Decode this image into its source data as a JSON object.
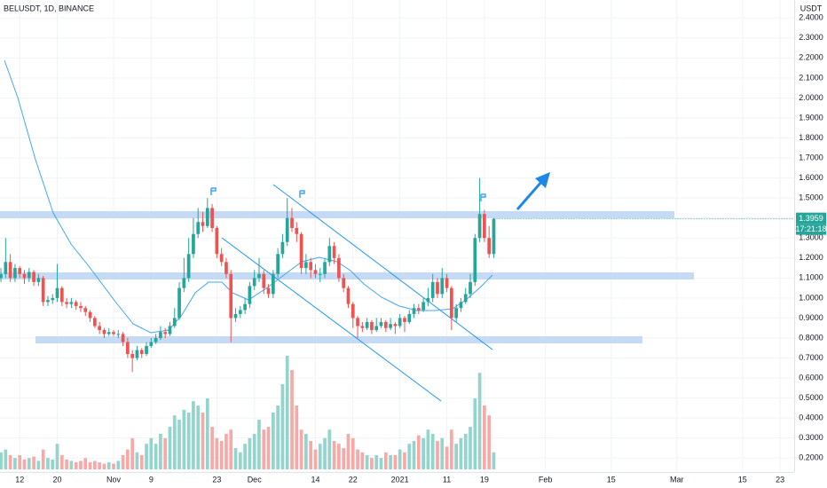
{
  "chart_data": {
    "type": "candlestick",
    "title": "BELUSDT, 1D, BINANCE",
    "currency_label": "USDT",
    "countdown": "17:21:18",
    "up_color": "#26a69a",
    "down_color": "#ef5350",
    "up_volume_color": "#93d4cc",
    "down_volume_color": "#f7a9a7",
    "ylim": [
      0.13,
      2.49
    ],
    "xlim": [
      -0.2,
      169
    ],
    "yticks": [
      {
        "value": 0.2,
        "label": "0.2000"
      },
      {
        "value": 0.3,
        "label": "0.3000"
      },
      {
        "value": 0.4,
        "label": "0.4000"
      },
      {
        "value": 0.5,
        "label": "0.5000"
      },
      {
        "value": 0.6,
        "label": "0.6000"
      },
      {
        "value": 0.7,
        "label": "0.7000"
      },
      {
        "value": 0.8,
        "label": "0.8000"
      },
      {
        "value": 0.9,
        "label": "0.9000"
      },
      {
        "value": 1.0,
        "label": "1.0000"
      },
      {
        "value": 1.1,
        "label": "1.1000"
      },
      {
        "value": 1.2,
        "label": "1.2000"
      },
      {
        "value": 1.3,
        "label": "1.3000"
      },
      {
        "value": 1.4,
        "label": "1.4000"
      },
      {
        "value": 1.5,
        "label": "1.5000"
      },
      {
        "value": 1.6,
        "label": "1.6000"
      },
      {
        "value": 1.7,
        "label": "1.7000"
      },
      {
        "value": 1.8,
        "label": "1.8000"
      },
      {
        "value": 1.9,
        "label": "1.9000"
      },
      {
        "value": 2.0,
        "label": "2.0000"
      },
      {
        "value": 2.1,
        "label": "2.1000"
      },
      {
        "value": 2.2,
        "label": "2.2000"
      },
      {
        "value": 2.3,
        "label": "2.3000"
      },
      {
        "value": 2.4,
        "label": "2.4000"
      }
    ],
    "xticks": [
      {
        "value": 4,
        "label": "12"
      },
      {
        "value": 12,
        "label": "20"
      },
      {
        "value": 24,
        "label": "Nov"
      },
      {
        "value": 32,
        "label": "9"
      },
      {
        "value": 46,
        "label": "23"
      },
      {
        "value": 54,
        "label": "Dec"
      },
      {
        "value": 67,
        "label": "14"
      },
      {
        "value": 75,
        "label": "22"
      },
      {
        "value": 85,
        "label": "2021"
      },
      {
        "value": 95,
        "label": "11"
      },
      {
        "value": 103,
        "label": "19"
      },
      {
        "value": 116,
        "label": "Feb"
      },
      {
        "value": 130,
        "label": "15"
      },
      {
        "value": 144,
        "label": "Mar"
      },
      {
        "value": 158,
        "label": "15"
      },
      {
        "value": 166,
        "label": "23"
      }
    ],
    "candles": [
      [
        1.1,
        1.15,
        1.08,
        1.12
      ],
      [
        1.12,
        1.3,
        1.1,
        1.18
      ],
      [
        1.18,
        1.22,
        1.08,
        1.1
      ],
      [
        1.1,
        1.17,
        1.08,
        1.15
      ],
      [
        1.15,
        1.16,
        1.1,
        1.12
      ],
      [
        1.12,
        1.14,
        1.07,
        1.1
      ],
      [
        1.1,
        1.15,
        1.08,
        1.13
      ],
      [
        1.13,
        1.14,
        1.06,
        1.08
      ],
      [
        1.08,
        1.12,
        1.06,
        1.1
      ],
      [
        1.1,
        1.11,
        0.96,
        0.98
      ],
      [
        0.98,
        1.01,
        0.96,
        0.99
      ],
      [
        0.99,
        1.02,
        0.97,
        1.0
      ],
      [
        1.0,
        1.17,
        0.98,
        1.05
      ],
      [
        1.05,
        1.06,
        0.96,
        0.98
      ],
      [
        0.98,
        1.0,
        0.95,
        0.97
      ],
      [
        0.97,
        1.0,
        0.95,
        0.98
      ],
      [
        0.98,
        0.99,
        0.94,
        0.96
      ],
      [
        0.96,
        0.98,
        0.93,
        0.95
      ],
      [
        0.95,
        0.96,
        0.91,
        0.93
      ],
      [
        0.93,
        0.94,
        0.88,
        0.9
      ],
      [
        0.9,
        0.91,
        0.85,
        0.86
      ],
      [
        0.86,
        0.88,
        0.82,
        0.84
      ],
      [
        0.84,
        0.85,
        0.8,
        0.82
      ],
      [
        0.82,
        0.85,
        0.81,
        0.83
      ],
      [
        0.83,
        0.84,
        0.81,
        0.82
      ],
      [
        0.82,
        0.84,
        0.8,
        0.82
      ],
      [
        0.82,
        0.83,
        0.76,
        0.78
      ],
      [
        0.78,
        0.8,
        0.7,
        0.72
      ],
      [
        0.72,
        0.74,
        0.63,
        0.7
      ],
      [
        0.7,
        0.76,
        0.69,
        0.74
      ],
      [
        0.74,
        0.75,
        0.7,
        0.72
      ],
      [
        0.72,
        0.78,
        0.71,
        0.76
      ],
      [
        0.76,
        0.8,
        0.75,
        0.78
      ],
      [
        0.78,
        0.82,
        0.77,
        0.8
      ],
      [
        0.8,
        0.86,
        0.79,
        0.83
      ],
      [
        0.83,
        0.85,
        0.8,
        0.82
      ],
      [
        0.82,
        0.88,
        0.81,
        0.86
      ],
      [
        0.86,
        0.95,
        0.85,
        0.9
      ],
      [
        0.9,
        1.08,
        0.89,
        1.05
      ],
      [
        1.05,
        1.2,
        1.03,
        1.1
      ],
      [
        1.1,
        1.3,
        1.08,
        1.22
      ],
      [
        1.22,
        1.4,
        1.2,
        1.32
      ],
      [
        1.32,
        1.45,
        1.3,
        1.38
      ],
      [
        1.38,
        1.43,
        1.33,
        1.36
      ],
      [
        1.36,
        1.5,
        1.35,
        1.45
      ],
      [
        1.45,
        1.47,
        1.33,
        1.35
      ],
      [
        1.35,
        1.36,
        1.2,
        1.22
      ],
      [
        1.22,
        1.25,
        1.16,
        1.18
      ],
      [
        1.18,
        1.2,
        1.1,
        1.12
      ],
      [
        1.12,
        1.14,
        0.78,
        0.9
      ],
      [
        0.9,
        0.95,
        0.88,
        0.92
      ],
      [
        0.92,
        0.96,
        0.9,
        0.94
      ],
      [
        0.94,
        1.0,
        0.92,
        0.97
      ],
      [
        0.97,
        1.08,
        0.95,
        1.06
      ],
      [
        1.06,
        1.14,
        1.04,
        1.1
      ],
      [
        1.1,
        1.2,
        1.08,
        1.12
      ],
      [
        1.12,
        1.14,
        1.02,
        1.05
      ],
      [
        1.05,
        1.07,
        1.0,
        1.02
      ],
      [
        1.02,
        1.14,
        1.0,
        1.12
      ],
      [
        1.12,
        1.25,
        1.1,
        1.22
      ],
      [
        1.22,
        1.32,
        1.2,
        1.28
      ],
      [
        1.28,
        1.5,
        1.26,
        1.4
      ],
      [
        1.4,
        1.45,
        1.33,
        1.35
      ],
      [
        1.35,
        1.38,
        1.28,
        1.32
      ],
      [
        1.32,
        1.33,
        1.12,
        1.15
      ],
      [
        1.15,
        1.22,
        1.12,
        1.18
      ],
      [
        1.18,
        1.2,
        1.1,
        1.14
      ],
      [
        1.14,
        1.17,
        1.1,
        1.12
      ],
      [
        1.12,
        1.15,
        1.08,
        1.12
      ],
      [
        1.12,
        1.2,
        1.1,
        1.18
      ],
      [
        1.18,
        1.3,
        1.16,
        1.26
      ],
      [
        1.26,
        1.28,
        1.17,
        1.2
      ],
      [
        1.2,
        1.22,
        1.08,
        1.1
      ],
      [
        1.1,
        1.12,
        1.03,
        1.05
      ],
      [
        1.05,
        1.06,
        0.95,
        0.97
      ],
      [
        0.97,
        0.98,
        0.85,
        0.9
      ],
      [
        0.9,
        0.91,
        0.8,
        0.86
      ],
      [
        0.86,
        0.88,
        0.83,
        0.85
      ],
      [
        0.85,
        0.9,
        0.84,
        0.88
      ],
      [
        0.88,
        0.89,
        0.82,
        0.84
      ],
      [
        0.84,
        0.9,
        0.83,
        0.86
      ],
      [
        0.86,
        0.9,
        0.85,
        0.88
      ],
      [
        0.88,
        0.89,
        0.83,
        0.85
      ],
      [
        0.85,
        0.9,
        0.84,
        0.87
      ],
      [
        0.87,
        0.88,
        0.82,
        0.86
      ],
      [
        0.86,
        0.92,
        0.85,
        0.9
      ],
      [
        0.9,
        0.91,
        0.83,
        0.88
      ],
      [
        0.88,
        0.94,
        0.87,
        0.92
      ],
      [
        0.92,
        0.97,
        0.9,
        0.95
      ],
      [
        0.95,
        0.97,
        0.92,
        0.94
      ],
      [
        0.94,
        1.0,
        0.93,
        0.98
      ],
      [
        0.98,
        1.05,
        0.96,
        1.0
      ],
      [
        1.0,
        1.12,
        0.98,
        1.08
      ],
      [
        1.08,
        1.1,
        1.0,
        1.02
      ],
      [
        1.02,
        1.15,
        1.0,
        1.1
      ],
      [
        1.1,
        1.12,
        1.03,
        1.05
      ],
      [
        1.05,
        1.06,
        0.84,
        0.9
      ],
      [
        0.9,
        0.97,
        0.88,
        0.95
      ],
      [
        0.95,
        1.0,
        0.93,
        0.98
      ],
      [
        0.98,
        1.05,
        0.97,
        1.02
      ],
      [
        1.02,
        1.12,
        1.0,
        1.08
      ],
      [
        1.08,
        1.32,
        1.06,
        1.3
      ],
      [
        1.3,
        1.6,
        1.28,
        1.42
      ],
      [
        1.42,
        1.44,
        1.28,
        1.3
      ],
      [
        1.3,
        1.36,
        1.2,
        1.22
      ],
      [
        1.22,
        1.4,
        1.2,
        1.3959
      ]
    ],
    "volume": [
      12,
      14,
      10,
      8,
      10,
      7,
      8,
      9,
      6,
      14,
      8,
      7,
      18,
      10,
      7,
      6,
      5,
      6,
      8,
      5,
      6,
      5,
      4,
      5,
      4,
      6,
      10,
      14,
      22,
      12,
      10,
      18,
      22,
      18,
      25,
      22,
      30,
      38,
      35,
      42,
      40,
      48,
      45,
      40,
      50,
      30,
      22,
      20,
      25,
      28,
      15,
      12,
      18,
      22,
      25,
      35,
      28,
      30,
      40,
      45,
      60,
      80,
      70,
      45,
      28,
      25,
      20,
      14,
      18,
      22,
      28,
      20,
      18,
      15,
      25,
      22,
      14,
      12,
      10,
      8,
      10,
      8,
      12,
      10,
      10,
      14,
      12,
      18,
      20,
      24,
      22,
      28,
      25,
      20,
      22,
      16,
      28,
      18,
      22,
      25,
      30,
      50,
      68,
      45,
      38,
      12
    ]
  }
}
